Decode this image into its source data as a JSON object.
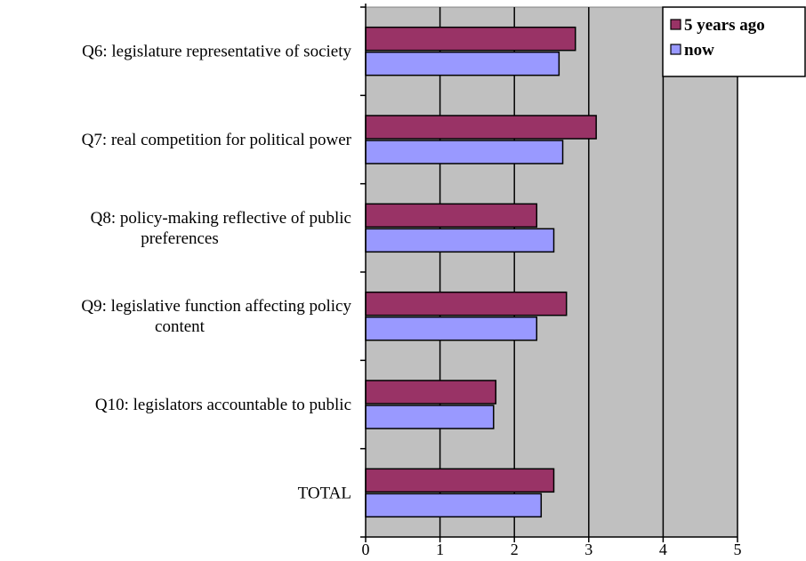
{
  "chart_data": {
    "type": "bar",
    "orientation": "horizontal",
    "categories": [
      [
        "Q6: legislature representative of society"
      ],
      [
        "Q7: real competition for political power"
      ],
      [
        "Q8: policy-making reflective of public",
        "preferences"
      ],
      [
        "Q9: legislative function affecting policy",
        "content"
      ],
      [
        "Q10: legislators accountable to public"
      ],
      [
        "TOTAL"
      ]
    ],
    "series": [
      {
        "name": "5 years ago",
        "values": [
          2.82,
          3.1,
          2.3,
          2.7,
          1.75,
          2.53
        ],
        "color": "#993366"
      },
      {
        "name": "now",
        "values": [
          2.6,
          2.65,
          2.53,
          2.3,
          1.72,
          2.36
        ],
        "color": "#9999ff"
      }
    ],
    "xlim": [
      0,
      5
    ],
    "xticks": [
      "0",
      "1",
      "2",
      "3",
      "4",
      "5"
    ],
    "grid": true,
    "plot_background": "#c0c0c0",
    "legend_position": "top-right"
  }
}
